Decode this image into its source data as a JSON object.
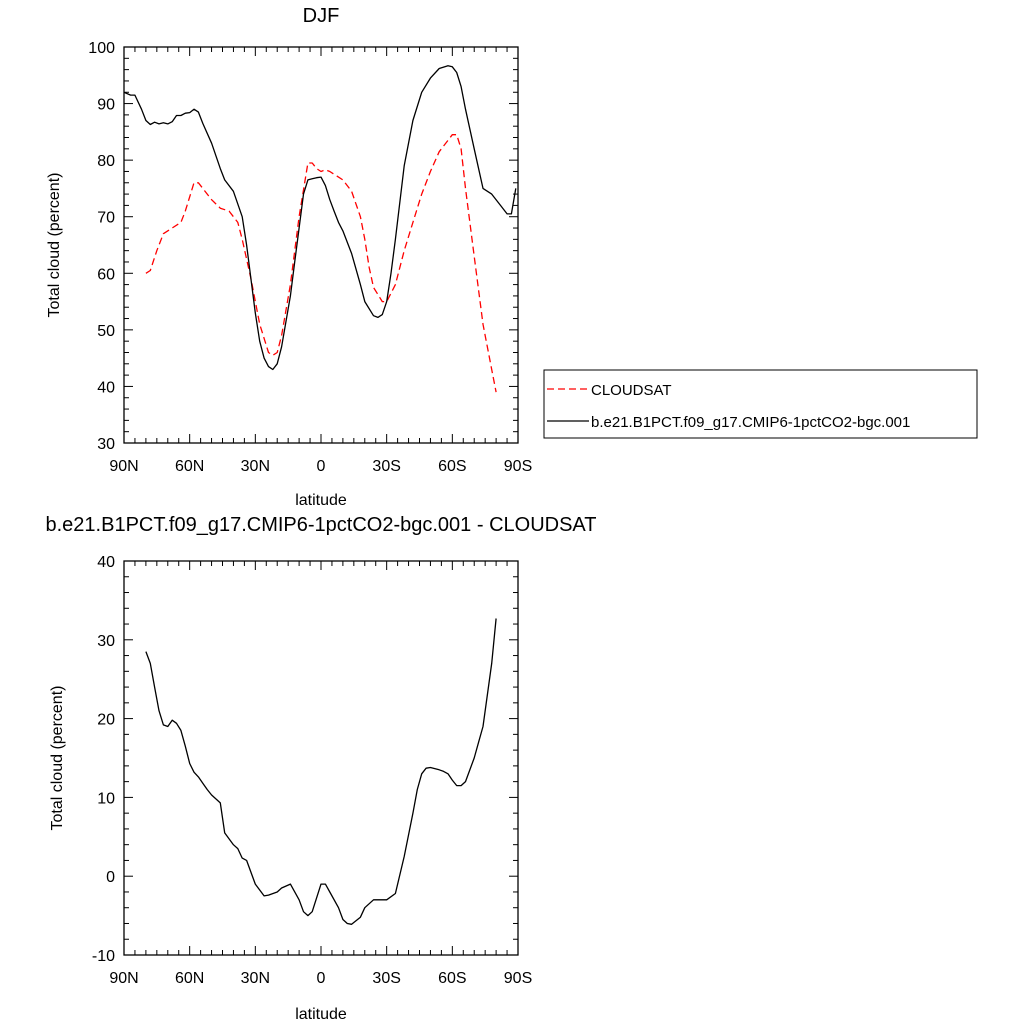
{
  "chart_data": [
    {
      "type": "line",
      "title": "DJF",
      "xlabel": "latitude",
      "ylabel": "Total cloud (percent)",
      "xlim": [
        90,
        -90
      ],
      "ylim": [
        30,
        100
      ],
      "x_ticks": [
        {
          "value": 90,
          "label": "90N"
        },
        {
          "value": 60,
          "label": "60N"
        },
        {
          "value": 30,
          "label": "30N"
        },
        {
          "value": 0,
          "label": "0"
        },
        {
          "value": -30,
          "label": "30S"
        },
        {
          "value": -60,
          "label": "60S"
        },
        {
          "value": -90,
          "label": "90S"
        }
      ],
      "y_ticks": [
        30,
        40,
        50,
        60,
        70,
        80,
        90,
        100
      ],
      "grid": false,
      "legend_placement": "right",
      "series": [
        {
          "name": "CLOUDSAT",
          "color": "#ff0000",
          "dash": "dashed",
          "x": [
            80,
            78,
            75,
            72,
            68,
            64,
            62,
            58,
            56,
            54,
            50,
            46,
            42,
            38,
            36,
            32,
            28,
            24,
            22,
            20,
            18,
            14,
            10,
            6,
            4,
            2,
            0,
            -2,
            -4,
            -6,
            -10,
            -14,
            -18,
            -20,
            -22,
            -24,
            -28,
            -30,
            -34,
            -38,
            -42,
            -46,
            -50,
            -54,
            -58,
            -60,
            -62,
            -64,
            -66,
            -70,
            -74,
            -78,
            -80
          ],
          "y": [
            60,
            60.5,
            64,
            67,
            68,
            69,
            71,
            76,
            76,
            75,
            73,
            71.5,
            71,
            69,
            66,
            59,
            51,
            46,
            45.5,
            46,
            49,
            58,
            70,
            79.5,
            79.5,
            78.5,
            78,
            78.3,
            78,
            77.5,
            76.5,
            74.5,
            70,
            66,
            61,
            57.5,
            55,
            55,
            58,
            64,
            69,
            74,
            78,
            81.5,
            83.5,
            84.5,
            84.5,
            82,
            75,
            63,
            51,
            43,
            39
          ]
        },
        {
          "name": "b.e21.B1PCT.f09_g17.CMIP6-1pctCO2-bgc.001",
          "color": "#000000",
          "dash": "solid",
          "x": [
            90,
            87,
            85,
            82,
            80,
            78,
            76,
            74,
            72,
            70,
            68,
            66,
            64,
            62,
            60,
            58,
            56,
            54,
            50,
            46,
            44,
            40,
            36,
            34,
            30,
            28,
            26,
            24,
            22,
            20,
            18,
            14,
            12,
            10,
            8,
            6,
            4,
            2,
            0,
            -2,
            -4,
            -6,
            -8,
            -10,
            -14,
            -18,
            -20,
            -24,
            -26,
            -28,
            -30,
            -32,
            -34,
            -38,
            -42,
            -46,
            -50,
            -54,
            -58,
            -60,
            -62,
            -64,
            -66,
            -70,
            -74,
            -78,
            -82,
            -85,
            -87,
            -89
          ],
          "y": [
            92,
            91.5,
            91.5,
            89,
            87,
            86.3,
            86.7,
            86.4,
            86.6,
            86.4,
            86.8,
            87.9,
            87.9,
            88.3,
            88.4,
            89,
            88.5,
            86.5,
            83,
            78.5,
            76.5,
            74.5,
            70,
            65,
            53,
            48,
            45,
            43.5,
            43,
            44,
            47,
            56,
            62,
            68,
            74,
            76.5,
            76.7,
            76.9,
            77,
            75.5,
            73,
            71,
            69,
            67.5,
            63.5,
            58,
            55,
            52.5,
            52.2,
            52.7,
            55,
            60,
            66,
            79,
            87,
            92,
            94.5,
            96.2,
            96.7,
            96.5,
            95.5,
            93,
            89,
            82,
            75,
            74,
            72,
            70.5,
            70.5,
            75
          ]
        }
      ]
    },
    {
      "type": "line",
      "title": "b.e21.B1PCT.f09_g17.CMIP6-1pctCO2-bgc.001 - CLOUDSAT",
      "xlabel": "latitude",
      "ylabel": "Total cloud (percent)",
      "xlim": [
        90,
        -90
      ],
      "ylim": [
        -10,
        40
      ],
      "x_ticks": [
        {
          "value": 90,
          "label": "90N"
        },
        {
          "value": 60,
          "label": "60N"
        },
        {
          "value": 30,
          "label": "30N"
        },
        {
          "value": 0,
          "label": "0"
        },
        {
          "value": -30,
          "label": "30S"
        },
        {
          "value": -60,
          "label": "60S"
        },
        {
          "value": -90,
          "label": "90S"
        }
      ],
      "y_ticks": [
        -10,
        0,
        10,
        20,
        30,
        40
      ],
      "grid": false,
      "series": [
        {
          "color": "#000000",
          "dash": "solid",
          "x": [
            80,
            78,
            76,
            74,
            72,
            70,
            68,
            66,
            64,
            62,
            60,
            58,
            56,
            54,
            52,
            50,
            46,
            44,
            40,
            38,
            36,
            34,
            30,
            26,
            24,
            20,
            18,
            14,
            10,
            8,
            6,
            4,
            0,
            -2,
            -4,
            -8,
            -10,
            -12,
            -14,
            -18,
            -20,
            -24,
            -26,
            -28,
            -30,
            -34,
            -38,
            -42,
            -44,
            -46,
            -48,
            -50,
            -54,
            -56,
            -58,
            -60,
            -62,
            -64,
            -66,
            -70,
            -72,
            -74,
            -78,
            -80
          ],
          "y": [
            28.5,
            27,
            24,
            21,
            19.2,
            19,
            19.8,
            19.4,
            18.5,
            16.5,
            14.3,
            13.2,
            12.6,
            11.8,
            11,
            10.3,
            9.3,
            5.5,
            4,
            3.5,
            2.3,
            2,
            -1,
            -2.5,
            -2.4,
            -2,
            -1.5,
            -1,
            -3,
            -4.5,
            -5,
            -4.5,
            -1,
            -1,
            -2,
            -4,
            -5.5,
            -6,
            -6.1,
            -5.2,
            -4,
            -3,
            -3,
            -3,
            -3,
            -2.2,
            2.5,
            8,
            11,
            13,
            13.7,
            13.8,
            13.5,
            13.3,
            13,
            12.2,
            11.5,
            11.5,
            12,
            15,
            17,
            19,
            27,
            32.7
          ]
        }
      ]
    }
  ],
  "legend": {
    "entries": [
      {
        "label": "CLOUDSAT",
        "color": "#ff0000",
        "dash": "dashed"
      },
      {
        "label": "b.e21.B1PCT.f09_g17.CMIP6-1pctCO2-bgc.001",
        "color": "#000000",
        "dash": "solid"
      }
    ]
  }
}
